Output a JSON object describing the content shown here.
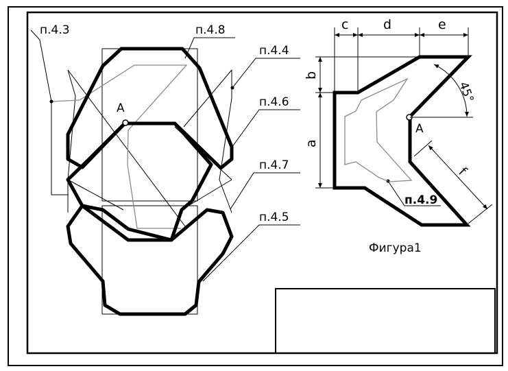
{
  "callouts": {
    "p43": "п.4.3",
    "p48": "п.4.8",
    "p44": "п.4.4",
    "p46": "п.4.6",
    "p47": "п.4.7",
    "p45": "п.4.5",
    "p49": "п.4.9"
  },
  "points": {
    "left_a": "A",
    "right_a": "A"
  },
  "dimensions": {
    "a": "a",
    "b": "b",
    "c": "c",
    "d": "d",
    "e": "e",
    "f": "f",
    "angle": "45°"
  },
  "caption": "Фигура1"
}
